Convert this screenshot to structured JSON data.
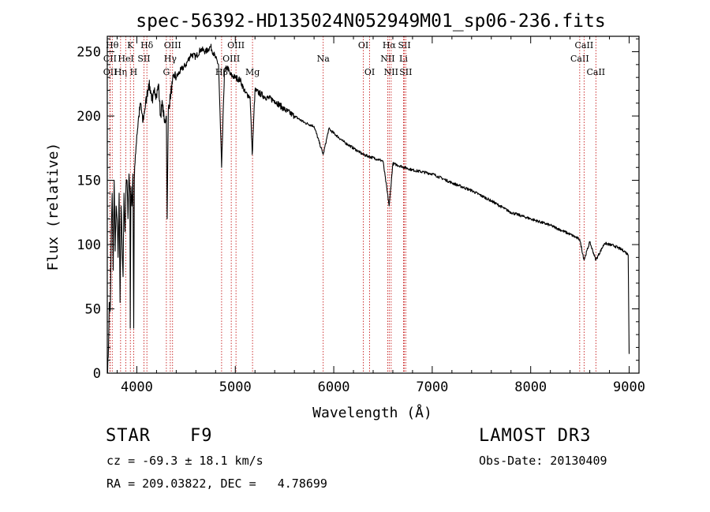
{
  "chart_data": {
    "type": "line",
    "title": "spec-56392-HD135024N052949M01_sp06-236.fits",
    "xlabel": "Wavelength (Å)",
    "ylabel": "Flux (relative)",
    "xlim": [
      3700,
      9100
    ],
    "ylim": [
      0,
      262
    ],
    "xticks": [
      4000,
      5000,
      6000,
      7000,
      8000,
      9000
    ],
    "yticks": [
      0,
      50,
      100,
      150,
      200,
      250
    ],
    "xtick_labels": [
      "4000",
      "5000",
      "6000",
      "7000",
      "8000",
      "9000"
    ],
    "ytick_labels": [
      "0",
      "50",
      "100",
      "150",
      "200",
      "250"
    ],
    "grid": false,
    "series": [
      {
        "name": "spectrum",
        "color": "#000000",
        "x": [
          3700,
          3710,
          3720,
          3730,
          3740,
          3750,
          3760,
          3770,
          3780,
          3790,
          3800,
          3810,
          3820,
          3830,
          3840,
          3850,
          3860,
          3870,
          3880,
          3890,
          3900,
          3910,
          3920,
          3930,
          3933,
          3940,
          3950,
          3960,
          3968,
          3975,
          3985,
          4000,
          4020,
          4040,
          4060,
          4080,
          4101,
          4120,
          4140,
          4160,
          4180,
          4200,
          4220,
          4240,
          4260,
          4280,
          4300,
          4308,
          4320,
          4340,
          4360,
          4380,
          4400,
          4450,
          4500,
          4550,
          4600,
          4650,
          4700,
          4750,
          4800,
          4830,
          4861,
          4890,
          4920,
          4950,
          5000,
          5050,
          5100,
          5150,
          5172,
          5200,
          5300,
          5400,
          5500,
          5600,
          5700,
          5800,
          5893,
          5950,
          6100,
          6300,
          6500,
          6563,
          6600,
          6800,
          7000,
          7200,
          7400,
          7600,
          7800,
          8000,
          8200,
          8400,
          8498,
          8542,
          8600,
          8662,
          8750,
          8850,
          8950,
          8990,
          9000
        ],
        "y": [
          0,
          12,
          55,
          48,
          105,
          140,
          80,
          150,
          95,
          130,
          120,
          90,
          140,
          55,
          130,
          100,
          75,
          140,
          110,
          145,
          150,
          120,
          155,
          140,
          35,
          145,
          130,
          155,
          35,
          150,
          170,
          185,
          200,
          210,
          195,
          205,
          215,
          225,
          220,
          210,
          222,
          215,
          225,
          200,
          210,
          195,
          200,
          120,
          205,
          215,
          225,
          232,
          230,
          236,
          240,
          248,
          246,
          252,
          250,
          254,
          245,
          240,
          160,
          235,
          238,
          232,
          230,
          228,
          218,
          215,
          170,
          220,
          215,
          212,
          205,
          200,
          195,
          192,
          170,
          190,
          180,
          170,
          165,
          130,
          163,
          158,
          155,
          148,
          142,
          134,
          125,
          120,
          115,
          108,
          104,
          88,
          102,
          88,
          101,
          99,
          95,
          92,
          15
        ]
      }
    ],
    "lines": [
      {
        "label": "CII",
        "x": 3727,
        "row": 2
      },
      {
        "label": "OII",
        "x": 3729,
        "row": 3
      },
      {
        "label": "Hθ",
        "x": 3750,
        "row": 1
      },
      {
        "label": "Hη",
        "x": 3835,
        "row": 3
      },
      {
        "label": "HeI",
        "x": 3889,
        "row": 2
      },
      {
        "label": "K",
        "x": 3934,
        "row": 1
      },
      {
        "label": "H",
        "x": 3968,
        "row": 3
      },
      {
        "label": "SII",
        "x": 4072,
        "row": 2
      },
      {
        "label": "Hδ",
        "x": 4102,
        "row": 1
      },
      {
        "label": "G",
        "x": 4300,
        "row": 3
      },
      {
        "label": "Hγ",
        "x": 4340,
        "row": 2
      },
      {
        "label": "OIII",
        "x": 4363,
        "row": 1
      },
      {
        "label": "Hβ",
        "x": 4861,
        "row": 3
      },
      {
        "label": "OIII",
        "x": 4959,
        "row": 2
      },
      {
        "label": "OIII",
        "x": 5007,
        "row": 1
      },
      {
        "label": "Mg",
        "x": 5175,
        "row": 3
      },
      {
        "label": "Na",
        "x": 5893,
        "row": 2
      },
      {
        "label": "OI",
        "x": 6300,
        "row": 1
      },
      {
        "label": "OI",
        "x": 6364,
        "row": 3
      },
      {
        "label": "NII",
        "x": 6548,
        "row": 2
      },
      {
        "label": "Hα",
        "x": 6563,
        "row": 1
      },
      {
        "label": "NII",
        "x": 6583,
        "row": 3
      },
      {
        "label": "Li",
        "x": 6708,
        "row": 2
      },
      {
        "label": "SII",
        "x": 6717,
        "row": 1
      },
      {
        "label": "SII",
        "x": 6731,
        "row": 3
      },
      {
        "label": "CaII",
        "x": 8498,
        "row": 2
      },
      {
        "label": "CaII",
        "x": 8542,
        "row": 1
      },
      {
        "label": "CaII",
        "x": 8662,
        "row": 3
      }
    ]
  },
  "info": {
    "object_class": "STAR",
    "subclass": "F9",
    "survey": "LAMOST DR3",
    "redshift": "cz = -69.3 ± 18.1 km/s",
    "obs_date": "Obs-Date: 20130409",
    "coords": "RA = 209.03822, DEC =   4.78699"
  }
}
